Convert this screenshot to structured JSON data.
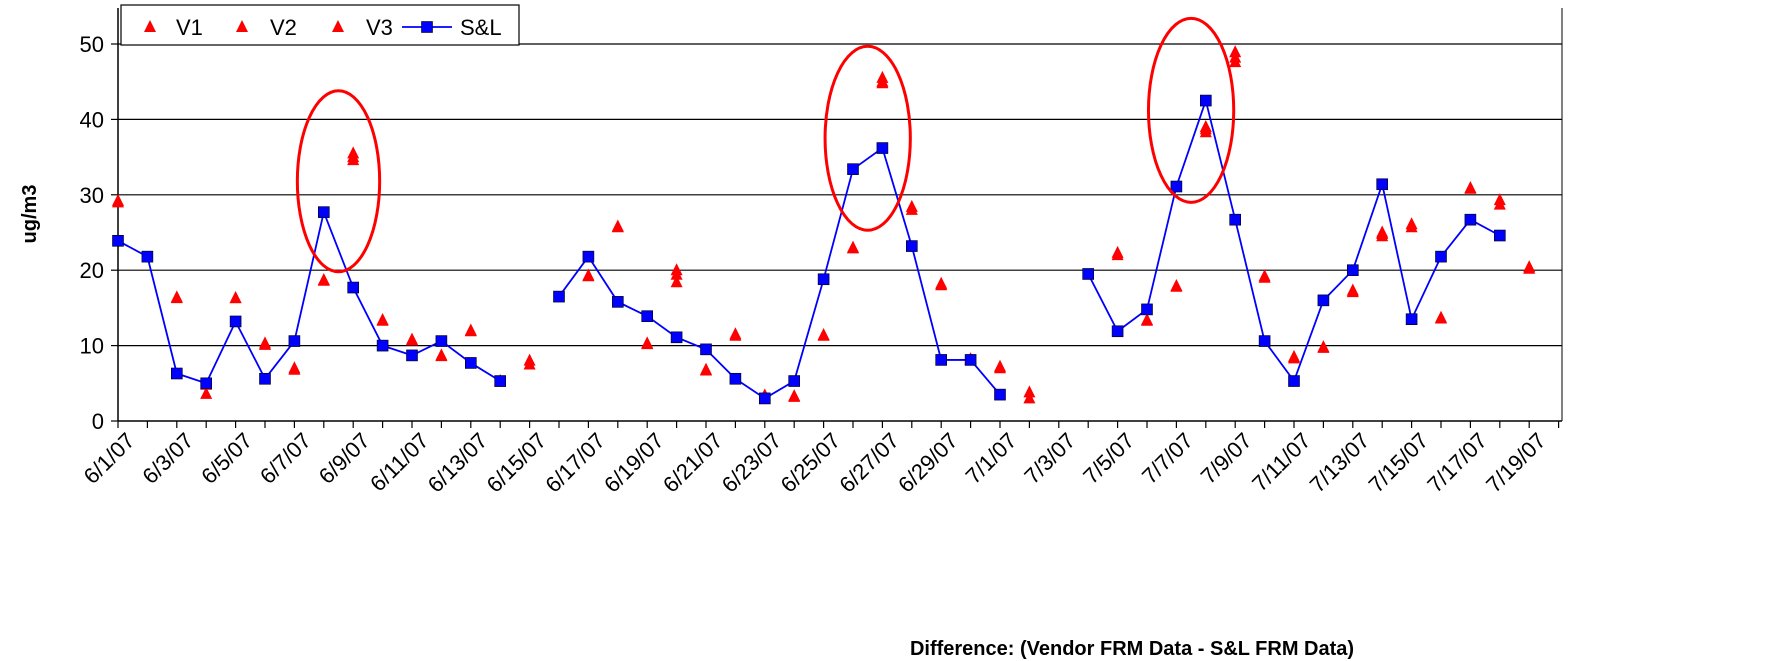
{
  "chart_data": {
    "type": "scatter",
    "title": "",
    "xlabel": "Difference: (Vendor FRM Data - S&L FRM Data)",
    "ylabel": "ug/m3",
    "ylim": [
      0,
      50
    ],
    "y_ticks": [
      0,
      10,
      20,
      30,
      40,
      50
    ],
    "grid": true,
    "legend_position": "top-left",
    "x_tick_labels": [
      "6/1/07",
      "6/3/07",
      "6/5/07",
      "6/7/07",
      "6/9/07",
      "6/11/07",
      "6/13/07",
      "6/15/07",
      "6/17/07",
      "6/19/07",
      "6/21/07",
      "6/23/07",
      "6/25/07",
      "6/27/07",
      "6/29/07",
      "7/1/07",
      "7/3/07",
      "7/5/07",
      "7/7/07",
      "7/9/07",
      "7/11/07",
      "7/13/07",
      "7/15/07",
      "7/17/07",
      "7/19/07"
    ],
    "colors": {
      "vendor": "#ff0000",
      "sl": "#0000ff",
      "ellipse": "#ff0000"
    },
    "series": [
      {
        "name": "V1",
        "marker": "triangle",
        "points": [
          [
            "6/1/07",
            29.2
          ],
          [
            "6/3/07",
            16.4
          ],
          [
            "6/4/07",
            4.8
          ],
          [
            "6/5/07",
            16.3
          ],
          [
            "6/6/07",
            10.3
          ],
          [
            "6/7/07",
            7.0
          ],
          [
            "6/8/07",
            18.7
          ],
          [
            "6/9/07",
            35.5
          ],
          [
            "6/10/07",
            13.4
          ],
          [
            "6/11/07",
            10.8
          ],
          [
            "6/12/07",
            8.7
          ],
          [
            "6/13/07",
            12.0
          ],
          [
            "6/14/07",
            5.3
          ],
          [
            "6/15/07",
            8.0
          ],
          [
            "6/17/07",
            19.3
          ],
          [
            "6/18/07",
            25.8
          ],
          [
            "6/19/07",
            10.3
          ],
          [
            "6/20/07",
            20.0
          ],
          [
            "6/21/07",
            6.8
          ],
          [
            "6/22/07",
            11.5
          ],
          [
            "6/23/07",
            3.4
          ],
          [
            "6/24/07",
            3.3
          ],
          [
            "6/25/07",
            11.4
          ],
          [
            "6/26/07",
            23.0
          ],
          [
            "6/27/07",
            45.5
          ],
          [
            "6/28/07",
            28.4
          ],
          [
            "6/29/07",
            18.2
          ],
          [
            "6/30/07",
            8.2
          ],
          [
            "7/1/07",
            7.2
          ],
          [
            "7/2/07",
            3.8
          ],
          [
            "7/5/07",
            22.3
          ],
          [
            "7/6/07",
            13.4
          ],
          [
            "7/7/07",
            17.9
          ],
          [
            "7/8/07",
            39.0
          ],
          [
            "7/9/07",
            48.9
          ],
          [
            "7/10/07",
            19.2
          ],
          [
            "7/11/07",
            8.5
          ],
          [
            "7/12/07",
            9.8
          ],
          [
            "7/13/07",
            17.3
          ],
          [
            "7/14/07",
            25.0
          ],
          [
            "7/15/07",
            26.1
          ],
          [
            "7/16/07",
            13.7
          ],
          [
            "7/17/07",
            30.9
          ],
          [
            "7/18/07",
            29.3
          ],
          [
            "7/19/07",
            20.4
          ]
        ]
      },
      {
        "name": "V2",
        "marker": "triangle",
        "points": [
          [
            "6/1/07",
            29.0
          ],
          [
            "6/3/07",
            16.3
          ],
          [
            "6/4/07",
            3.6
          ],
          [
            "6/5/07",
            16.3
          ],
          [
            "6/6/07",
            10.1
          ],
          [
            "6/7/07",
            6.8
          ],
          [
            "6/8/07",
            18.6
          ],
          [
            "6/9/07",
            34.6
          ],
          [
            "6/10/07",
            13.3
          ],
          [
            "6/11/07",
            10.7
          ],
          [
            "6/12/07",
            8.6
          ],
          [
            "6/13/07",
            11.9
          ],
          [
            "6/14/07",
            5.2
          ],
          [
            "6/15/07",
            7.5
          ],
          [
            "6/17/07",
            19.2
          ],
          [
            "6/18/07",
            25.7
          ],
          [
            "6/19/07",
            10.2
          ],
          [
            "6/20/07",
            19.4
          ],
          [
            "6/21/07",
            6.7
          ],
          [
            "6/22/07",
            11.3
          ],
          [
            "6/23/07",
            2.9
          ],
          [
            "6/24/07",
            3.2
          ],
          [
            "6/25/07",
            11.3
          ],
          [
            "6/26/07",
            22.9
          ],
          [
            "6/27/07",
            44.8
          ],
          [
            "6/28/07",
            28.0
          ],
          [
            "6/29/07",
            18.0
          ],
          [
            "6/30/07",
            8.1
          ],
          [
            "7/1/07",
            7.0
          ],
          [
            "7/2/07",
            3.0
          ],
          [
            "7/5/07",
            22.0
          ],
          [
            "7/6/07",
            13.3
          ],
          [
            "7/7/07",
            17.8
          ],
          [
            "7/8/07",
            38.3
          ],
          [
            "7/9/07",
            47.6
          ],
          [
            "7/10/07",
            19.0
          ],
          [
            "7/11/07",
            8.3
          ],
          [
            "7/12/07",
            9.7
          ],
          [
            "7/13/07",
            17.1
          ],
          [
            "7/14/07",
            24.5
          ],
          [
            "7/15/07",
            25.7
          ],
          [
            "7/16/07",
            13.6
          ],
          [
            "7/17/07",
            30.8
          ],
          [
            "7/18/07",
            28.7
          ],
          [
            "7/19/07",
            20.2
          ]
        ]
      },
      {
        "name": "V3",
        "marker": "triangle",
        "points": [
          [
            "6/20/07",
            18.4
          ],
          [
            "6/9/07",
            35.0
          ],
          [
            "7/8/07",
            38.7
          ],
          [
            "7/9/07",
            48.2
          ],
          [
            "7/14/07",
            24.8
          ],
          [
            "6/27/07",
            45.0
          ]
        ]
      },
      {
        "name": "S&L",
        "marker": "square",
        "line": true,
        "segments": [
          [
            [
              "6/1/07",
              23.9
            ],
            [
              "6/2/07",
              21.8
            ],
            [
              "6/3/07",
              6.3
            ],
            [
              "6/4/07",
              5.0
            ],
            [
              "6/5/07",
              13.2
            ],
            [
              "6/6/07",
              5.6
            ],
            [
              "6/7/07",
              10.6
            ],
            [
              "6/8/07",
              27.7
            ],
            [
              "6/9/07",
              17.7
            ],
            [
              "6/10/07",
              10.0
            ],
            [
              "6/11/07",
              8.7
            ],
            [
              "6/12/07",
              10.6
            ],
            [
              "6/13/07",
              7.7
            ],
            [
              "6/14/07",
              5.3
            ]
          ],
          [
            [
              "6/16/07",
              16.5
            ],
            [
              "6/17/07",
              21.8
            ],
            [
              "6/18/07",
              15.8
            ],
            [
              "6/19/07",
              13.9
            ],
            [
              "6/20/07",
              11.1
            ],
            [
              "6/21/07",
              9.5
            ],
            [
              "6/22/07",
              5.6
            ],
            [
              "6/23/07",
              3.0
            ],
            [
              "6/24/07",
              5.3
            ],
            [
              "6/25/07",
              18.8
            ],
            [
              "6/26/07",
              33.4
            ],
            [
              "6/27/07",
              36.2
            ],
            [
              "6/28/07",
              23.2
            ],
            [
              "6/29/07",
              8.1
            ],
            [
              "6/30/07",
              8.1
            ],
            [
              "7/1/07",
              3.5
            ]
          ],
          [
            [
              "7/4/07",
              19.5
            ],
            [
              "7/5/07",
              11.9
            ],
            [
              "7/6/07",
              14.8
            ],
            [
              "7/7/07",
              31.1
            ],
            [
              "7/8/07",
              42.5
            ],
            [
              "7/9/07",
              26.7
            ],
            [
              "7/10/07",
              10.6
            ],
            [
              "7/11/07",
              5.3
            ],
            [
              "7/12/07",
              16.0
            ],
            [
              "7/13/07",
              20.0
            ],
            [
              "7/14/07",
              31.4
            ],
            [
              "7/15/07",
              13.5
            ],
            [
              "7/16/07",
              21.8
            ],
            [
              "7/17/07",
              26.7
            ],
            [
              "7/18/07",
              24.6
            ]
          ]
        ]
      }
    ],
    "highlight_ellipses": [
      {
        "center_date": "6/8/07",
        "center_value": 31.8,
        "half_days": 1.4,
        "half_value": 12
      },
      {
        "center_date": "6/26/07",
        "center_value": 37.5,
        "half_days": 1.45,
        "half_value": 12.2
      },
      {
        "center_date": "7/7/07",
        "center_value": 41.2,
        "half_days": 1.45,
        "half_value": 12.2
      }
    ]
  }
}
